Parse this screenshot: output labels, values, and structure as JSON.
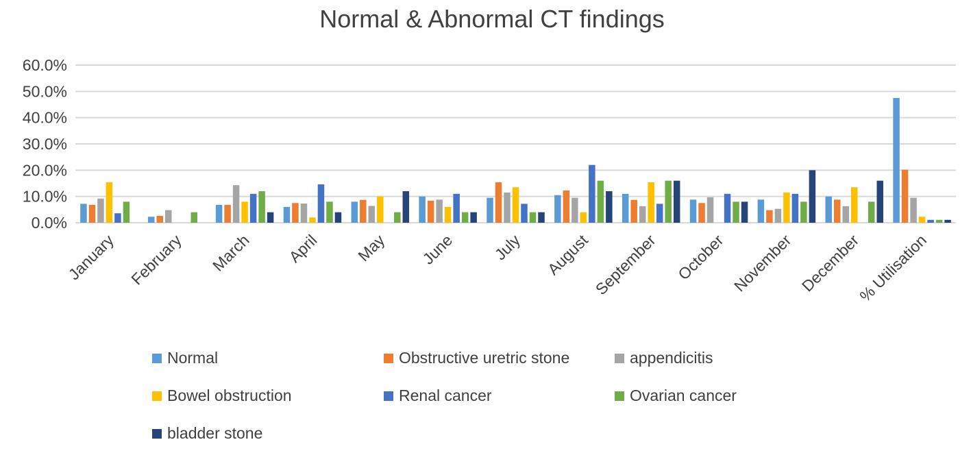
{
  "chart_data": {
    "type": "bar",
    "title": "Normal & Abnormal CT findings",
    "xlabel": "",
    "ylabel": "",
    "ylim": [
      0,
      60
    ],
    "yticks": [
      "0.0%",
      "10.0%",
      "20.0%",
      "30.0%",
      "40.0%",
      "50.0%",
      "60.0%"
    ],
    "grid": true,
    "legend_position": "bottom",
    "categories": [
      "January",
      "February",
      "March",
      "April",
      "May",
      "June",
      "July",
      "August",
      "September",
      "October",
      "November",
      "December",
      "% Utilisation"
    ],
    "series": [
      {
        "name": "Normal",
        "color": "#5b9bd5",
        "values": [
          7.2,
          2.3,
          6.8,
          6.0,
          8.0,
          10.0,
          9.5,
          10.5,
          11.0,
          8.8,
          8.8,
          10.0,
          47.5
        ]
      },
      {
        "name": "Obstructive uretric stone",
        "color": "#ed7d31",
        "values": [
          6.8,
          2.6,
          6.8,
          7.5,
          8.7,
          8.4,
          15.4,
          12.3,
          8.7,
          7.5,
          4.8,
          8.8,
          20.2
        ]
      },
      {
        "name": "appendicitis",
        "color": "#a5a5a5",
        "values": [
          9.2,
          4.8,
          14.3,
          7.3,
          6.4,
          8.8,
          11.5,
          9.5,
          6.3,
          9.7,
          5.3,
          6.3,
          9.5
        ]
      },
      {
        "name": "Bowel obstruction",
        "color": "#ffc000",
        "values": [
          15.4,
          0,
          8.0,
          2.0,
          10.0,
          6.0,
          13.5,
          4.0,
          15.4,
          0,
          11.5,
          13.5,
          2.3
        ]
      },
      {
        "name": "Renal cancer",
        "color": "#4472c4",
        "values": [
          3.6,
          0,
          11.0,
          14.6,
          0,
          11.0,
          7.2,
          22.0,
          7.2,
          11.0,
          11.0,
          0,
          1.1
        ]
      },
      {
        "name": "Ovarian cancer",
        "color": "#70ad47",
        "values": [
          8.0,
          4.0,
          12.0,
          8.0,
          4.0,
          4.0,
          4.0,
          16.0,
          16.0,
          8.0,
          8.0,
          8.0,
          1.1
        ]
      },
      {
        "name": "bladder stone",
        "color": "#264478",
        "values": [
          0,
          0,
          4.0,
          4.0,
          12.0,
          4.0,
          4.0,
          12.0,
          16.0,
          8.0,
          20.0,
          16.0,
          1.1
        ]
      }
    ]
  }
}
